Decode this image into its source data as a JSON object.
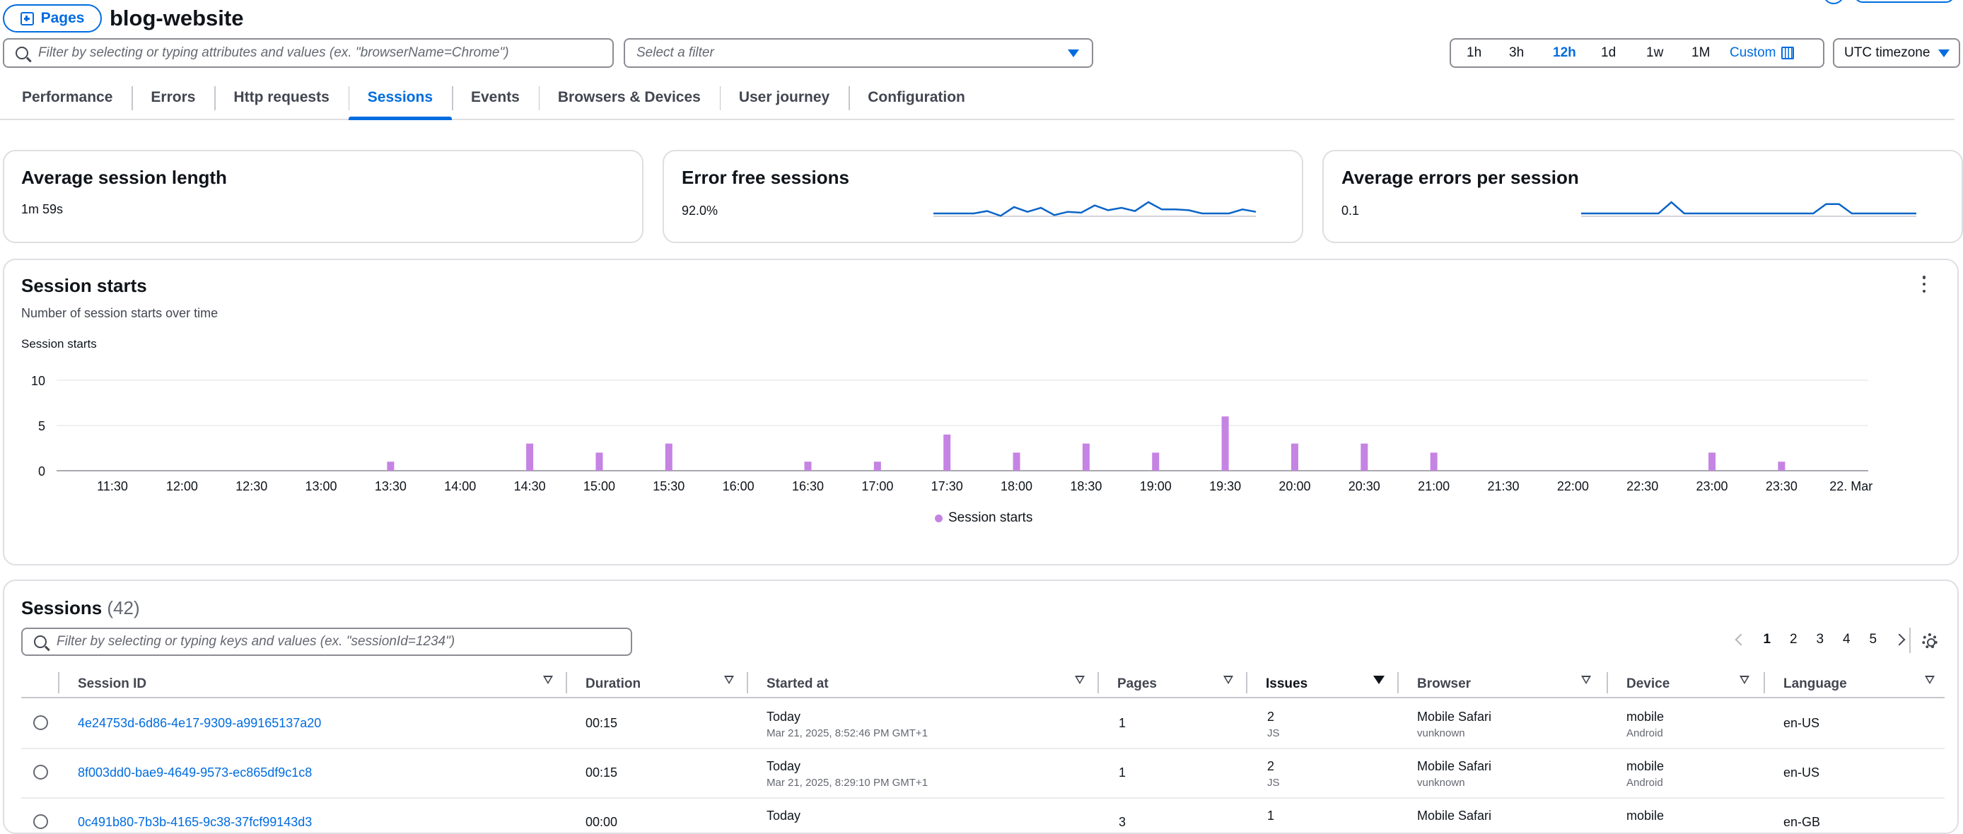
{
  "header": {
    "pages_label": "Pages",
    "app_name": "blog-website",
    "filter_placeholder": "Filter by selecting or typing attributes and values (ex. \"browserName=Chrome\")",
    "select_filter_placeholder": "Select a filter",
    "time_ranges": [
      "1h",
      "3h",
      "12h",
      "1d",
      "1w",
      "1M"
    ],
    "selected_range": "12h",
    "custom_label": "Custom",
    "timezone_label": "UTC timezone"
  },
  "tabs": [
    "Performance",
    "Errors",
    "Http requests",
    "Sessions",
    "Events",
    "Browsers & Devices",
    "User journey",
    "Configuration"
  ],
  "active_tab": "Sessions",
  "colors": {
    "accent": "#006ce0",
    "bar": "#c583e3",
    "spark": "#0a64c8"
  },
  "metrics": [
    {
      "title": "Average session length",
      "value": "1m 59s"
    },
    {
      "title": "Error free sessions",
      "value": "92.0%"
    },
    {
      "title": "Average errors per session",
      "value": "0.1"
    }
  ],
  "chart_panel": {
    "title": "Session starts",
    "subtitle": "Number of session starts over time",
    "ylabel": "Session starts",
    "legend": "Session starts"
  },
  "chart_data": {
    "type": "bar",
    "categories": [
      "11:30",
      "12:00",
      "12:30",
      "13:00",
      "13:30",
      "14:00",
      "14:30",
      "15:00",
      "15:30",
      "16:00",
      "16:30",
      "17:00",
      "17:30",
      "18:00",
      "18:30",
      "19:00",
      "19:30",
      "20:00",
      "20:30",
      "21:00",
      "21:30",
      "22:00",
      "22:30",
      "23:00",
      "23:30",
      "22. Mar"
    ],
    "series": [
      {
        "name": "Session starts",
        "values": [
          0,
          0,
          0,
          0,
          1,
          0,
          3,
          2,
          3,
          0,
          1,
          1,
          4,
          2,
          3,
          2,
          6,
          3,
          3,
          2,
          0,
          0,
          0,
          2,
          1,
          0
        ]
      }
    ],
    "yticks": [
      0,
      5,
      10
    ],
    "ylim": [
      0,
      10
    ],
    "ylabel": "Session starts",
    "legend_position": "bottom-center",
    "grid": true
  },
  "sparklines": {
    "error_free": [
      0,
      0,
      0,
      0,
      0.3,
      -0.3,
      0.8,
      0.2,
      0.7,
      -0.2,
      0.2,
      0.1,
      1.0,
      0.4,
      0.7,
      0.3,
      1.4,
      0.5,
      0.5,
      0.4,
      0,
      0,
      0,
      0.5,
      0.2
    ],
    "errors_per_session": [
      0,
      0,
      0,
      0,
      0,
      0,
      0,
      1.2,
      0,
      0,
      0,
      0,
      0,
      0,
      0,
      0,
      0,
      0,
      0,
      1.0,
      1.0,
      0,
      0,
      0,
      0,
      0,
      0
    ]
  },
  "sessions": {
    "title": "Sessions",
    "count": "(42)",
    "filter_placeholder": "Filter by selecting or typing keys and values (ex. \"sessionId=1234\")",
    "pages": [
      "1",
      "2",
      "3",
      "4",
      "5"
    ],
    "current_page": "1",
    "columns": [
      "Session ID",
      "Duration",
      "Started at",
      "Pages",
      "Issues",
      "Browser",
      "Device",
      "Language"
    ],
    "rows": [
      {
        "id": "4e24753d-6d86-4e17-9309-a99165137a20",
        "duration": "00:15",
        "started_day": "Today",
        "started_full": "Mar 21, 2025, 8:52:46 PM GMT+1",
        "pages": "1",
        "issues": "2",
        "issues_type": "JS",
        "browser": "Mobile Safari",
        "browser_ver": "vunknown",
        "device": "mobile",
        "os": "Android",
        "language": "en-US"
      },
      {
        "id": "8f003dd0-bae9-4649-9573-ec865df9c1c8",
        "duration": "00:15",
        "started_day": "Today",
        "started_full": "Mar 21, 2025, 8:29:10 PM GMT+1",
        "pages": "1",
        "issues": "2",
        "issues_type": "JS",
        "browser": "Mobile Safari",
        "browser_ver": "vunknown",
        "device": "mobile",
        "os": "Android",
        "language": "en-US"
      },
      {
        "id": "0c491b80-7b3b-4165-9c38-37fcf99143d3",
        "duration": "00:00",
        "started_day": "Today",
        "started_full": "",
        "pages": "3",
        "issues": "1",
        "issues_type": "",
        "browser": "Mobile Safari",
        "browser_ver": "",
        "device": "mobile",
        "os": "",
        "language": "en-GB"
      }
    ]
  }
}
